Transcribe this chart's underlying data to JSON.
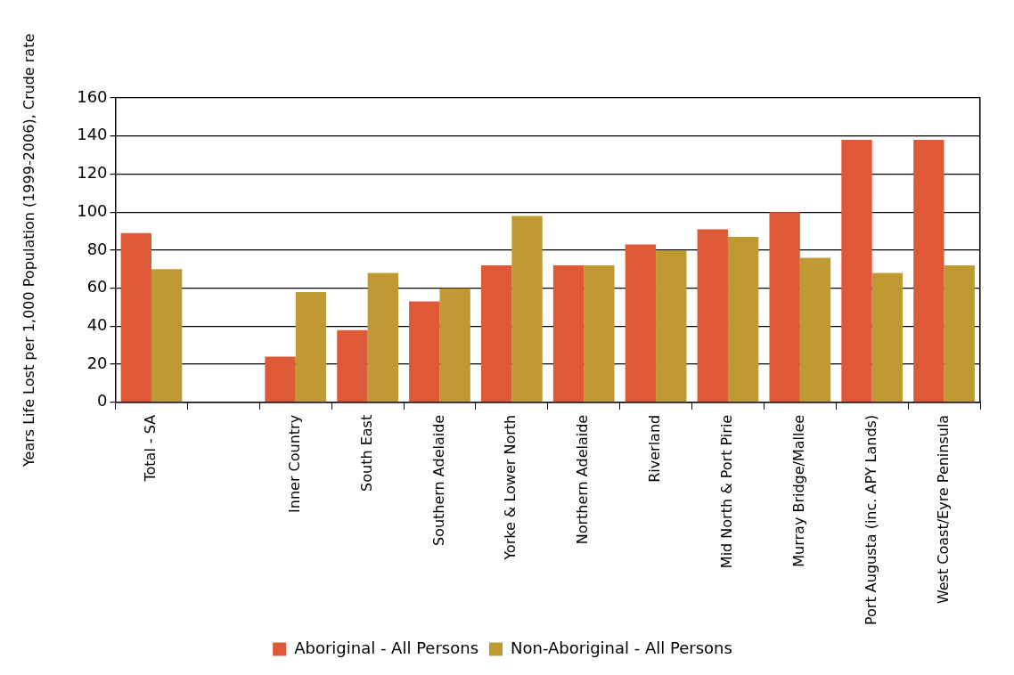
{
  "chart_data": {
    "type": "bar",
    "ylabel": "Years Life Lost per 1,000 Population (1999-2006), Crude rate",
    "categories": [
      "Total - SA",
      null,
      "Inner Country",
      "South East",
      "Southern Adelaide",
      "Yorke & Lower North",
      "Northern Adelaide",
      "Riverland",
      "Mid North & Port Pirie",
      "Murray Bridge/Mallee",
      "Port Augusta (inc. APY Lands)",
      "West Coast/Eyre Peninsula"
    ],
    "series": [
      {
        "name": "Aboriginal - All Persons",
        "color": "#de5937",
        "values": [
          89,
          null,
          24,
          38,
          53,
          72,
          72,
          83,
          91,
          100,
          138,
          138
        ]
      },
      {
        "name": "Non-Aboriginal - All Persons",
        "color": "#bf9a33",
        "values": [
          70,
          null,
          58,
          68,
          60,
          98,
          72,
          80,
          87,
          76,
          68,
          72
        ]
      }
    ],
    "ylim": [
      0,
      160
    ],
    "yticks": [
      0,
      20,
      40,
      60,
      80,
      100,
      120,
      140,
      160
    ],
    "grid": "y",
    "legend": "bottom"
  }
}
